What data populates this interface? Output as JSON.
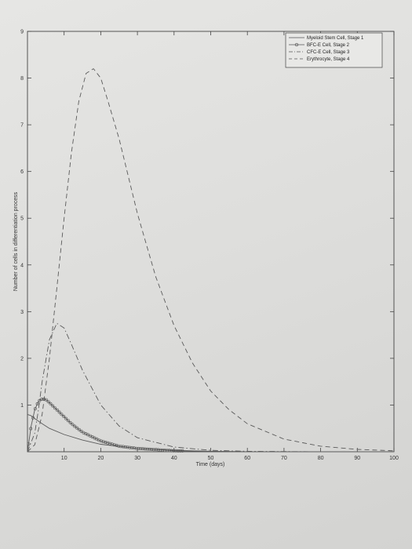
{
  "chart_data": {
    "type": "line",
    "xlabel": "Time (days)",
    "ylabel": "Number of cells in differentiation process",
    "xlim": [
      0,
      100
    ],
    "ylim": [
      0,
      9
    ],
    "x_ticks": [
      "10",
      "20",
      "30",
      "40",
      "50",
      "60",
      "70",
      "80",
      "90",
      "100"
    ],
    "y_ticks": [
      "1",
      "2",
      "3",
      "4",
      "5",
      "6",
      "7",
      "8",
      "9"
    ],
    "grid": false,
    "legend_position": "top-right",
    "series": [
      {
        "name": "Myeloid Stem Cell, Stage 1",
        "style": "solid",
        "x": [
          0,
          1,
          2,
          4,
          6,
          10,
          15,
          20,
          30,
          40,
          50,
          60,
          80,
          100
        ],
        "y": [
          0.8,
          0.77,
          0.71,
          0.6,
          0.5,
          0.37,
          0.25,
          0.16,
          0.07,
          0.03,
          0.01,
          0.0,
          0.0,
          0.0
        ]
      },
      {
        "name": "BFC-E Cell, Stage 2",
        "style": "solid-markers",
        "x": [
          0,
          1,
          2,
          3,
          4,
          5,
          6,
          8,
          10,
          12,
          15,
          20,
          25,
          30,
          40,
          50,
          60,
          80,
          100
        ],
        "y": [
          0.0,
          0.55,
          0.9,
          1.08,
          1.13,
          1.12,
          1.05,
          0.9,
          0.75,
          0.6,
          0.42,
          0.23,
          0.12,
          0.07,
          0.02,
          0.01,
          0.0,
          0.0,
          0.0
        ]
      },
      {
        "name": "CFC-E Cell, Stage 3",
        "style": "dash-dot",
        "x": [
          0,
          2,
          3,
          4,
          6,
          8,
          10,
          12,
          15,
          20,
          25,
          30,
          40,
          50,
          60,
          80,
          100
        ],
        "y": [
          0.0,
          0.4,
          0.9,
          1.5,
          2.4,
          2.75,
          2.65,
          2.3,
          1.75,
          1.0,
          0.55,
          0.3,
          0.1,
          0.03,
          0.01,
          0.0,
          0.0
        ]
      },
      {
        "name": "Erythrocyte, Stage 4",
        "style": "dashed",
        "x": [
          0,
          2,
          4,
          6,
          8,
          10,
          12,
          14,
          16,
          18,
          20,
          22,
          25,
          30,
          35,
          40,
          45,
          50,
          55,
          60,
          70,
          80,
          90,
          100
        ],
        "y": [
          0.0,
          0.15,
          0.8,
          2.0,
          3.5,
          5.0,
          6.4,
          7.5,
          8.1,
          8.2,
          8.0,
          7.5,
          6.7,
          5.1,
          3.75,
          2.7,
          1.9,
          1.3,
          0.9,
          0.6,
          0.27,
          0.12,
          0.05,
          0.02
        ]
      }
    ]
  }
}
